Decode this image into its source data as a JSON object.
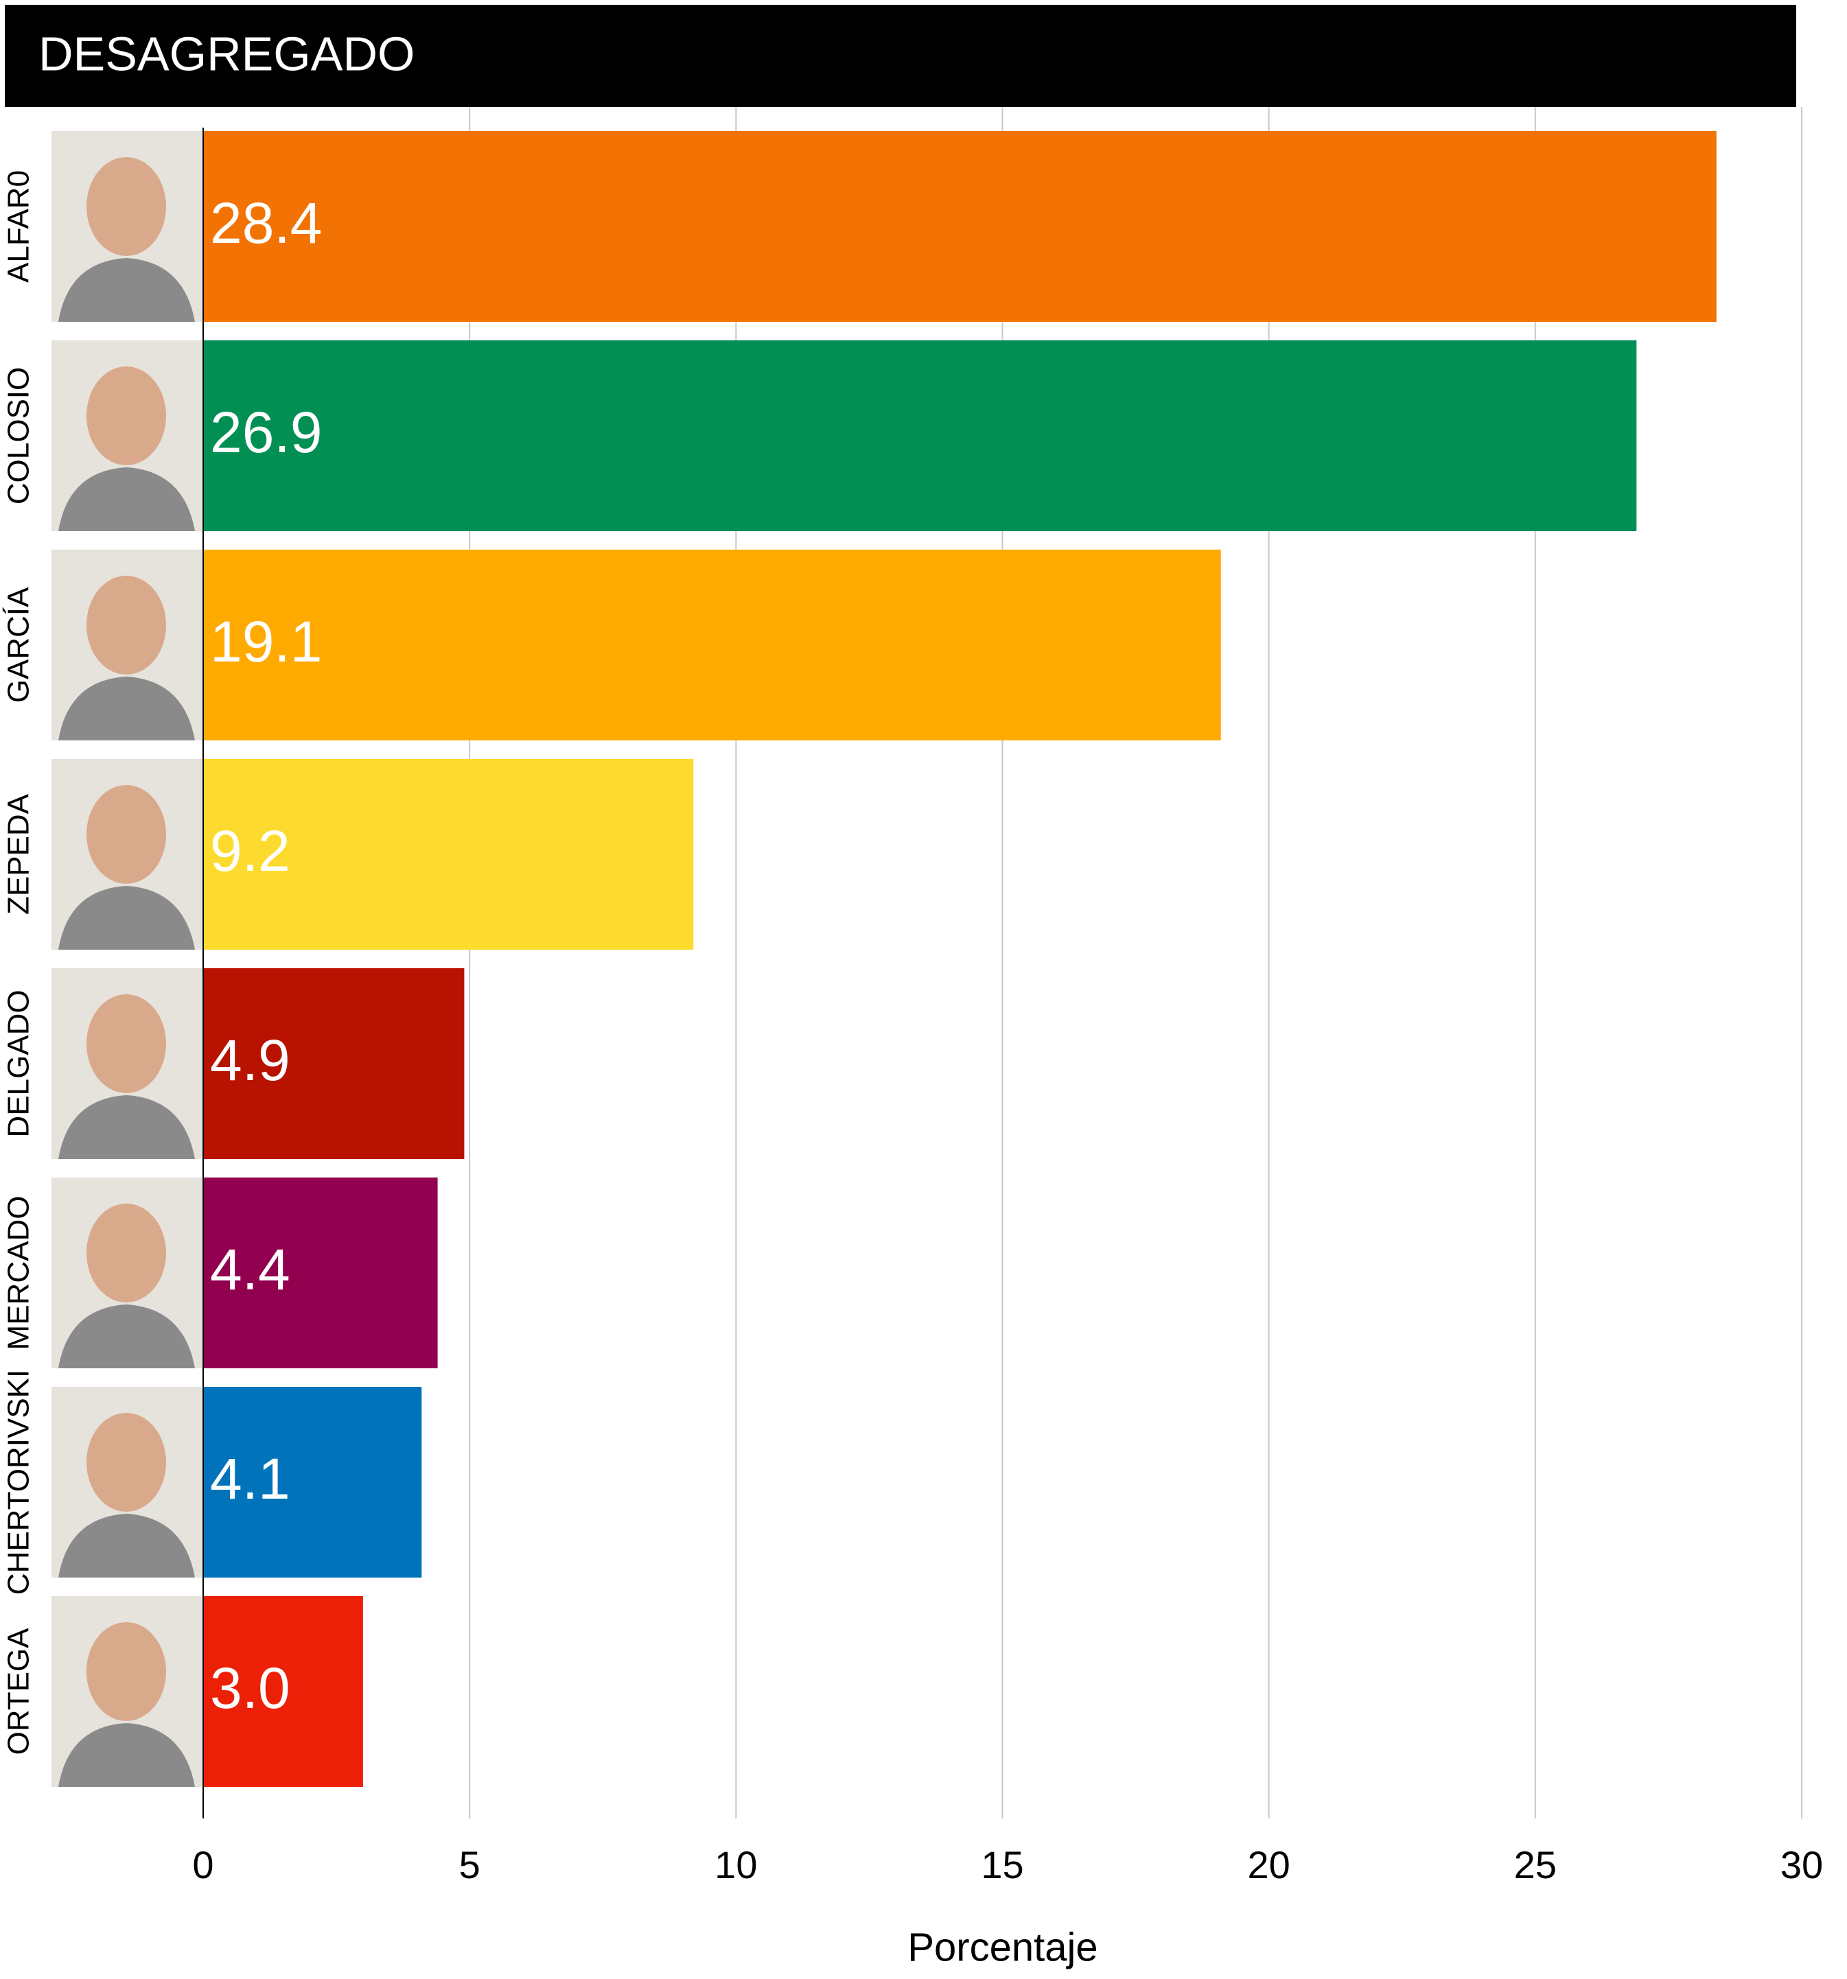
{
  "chart_data": {
    "type": "bar",
    "orientation": "horizontal",
    "title": "DESAGREGADO",
    "categories": [
      "ALFAR0",
      "COLOSIO",
      "GARCÍA",
      "ZEPEDA",
      "DELGADO",
      "MERCADO",
      "CHERTORIVSKI",
      "ORTEGA"
    ],
    "values": [
      28.4,
      26.9,
      19.1,
      9.2,
      4.9,
      4.4,
      4.1,
      3.0
    ],
    "value_labels": [
      "28.4",
      "26.9",
      "19.1",
      "9.2",
      "4.9",
      "4.4",
      "4.1",
      "3.0"
    ],
    "colors": [
      "#f27304",
      "#028f53",
      "#ffaa00",
      "#fddb2e",
      "#b71300",
      "#920050",
      "#0073bb",
      "#ec2007"
    ],
    "xlabel": "Porcentaje",
    "xlim": [
      0,
      30
    ],
    "xticks": [
      0,
      5,
      10,
      15,
      20,
      25,
      30
    ],
    "grid": true
  }
}
